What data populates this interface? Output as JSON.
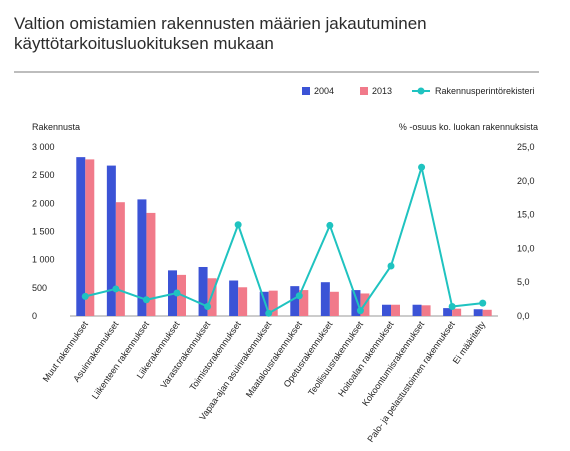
{
  "title_line1": "Valtion omistamien rakennusten määrien jakautuminen",
  "title_line2": "käyttötarkoitusluokituksen mukaan",
  "colors": {
    "bar2004": "#3b53d6",
    "bar2013": "#f17a8a",
    "line": "#1fc3c0"
  },
  "chart_data": {
    "type": "bar",
    "categories": [
      "Muut rakennukset",
      "Asuinrakennukset",
      "Liikenteen rakennukset",
      "Liikerakennukset",
      "Varastorakennukset",
      "Toimistorakennukset",
      "Vapaa-ajan asuinrakennukset",
      "Maatalousrakennukset",
      "Opetusrakennukset",
      "Teollisuusrakennukset",
      "Hoitoalan rakennukset",
      "Kokoontumisrakennukset",
      "Palo- ja pelastustoimen rakennukset",
      "Ei määritelty"
    ],
    "series": [
      {
        "name": "2004",
        "axis": "left",
        "kind": "bar",
        "values": [
          2820,
          2670,
          2070,
          810,
          870,
          630,
          430,
          530,
          600,
          460,
          200,
          200,
          140,
          120
        ]
      },
      {
        "name": "2013",
        "axis": "left",
        "kind": "bar",
        "values": [
          2780,
          2020,
          1830,
          730,
          670,
          510,
          450,
          460,
          430,
          400,
          200,
          190,
          130,
          110
        ]
      },
      {
        "name": "Rakennusperintörekisteri",
        "axis": "right",
        "kind": "line",
        "values": [
          2.9,
          4.0,
          2.4,
          3.4,
          1.4,
          13.5,
          0.4,
          3.0,
          13.4,
          0.8,
          7.4,
          22.0,
          1.4,
          1.9
        ]
      }
    ],
    "ylabel_left": "Rakennusta",
    "ylabel_right": "% -osuus  ko. luokan rakennuksista",
    "ylim_left": [
      0,
      3000
    ],
    "ylim_right": [
      0,
      25
    ],
    "yticks_left": [
      "0",
      "500",
      "1 000",
      "1 500",
      "2 000",
      "2 500",
      "3 000"
    ],
    "yticks_right": [
      "0,0",
      "5,0",
      "10,0",
      "15,0",
      "20,0",
      "25,0"
    ],
    "legend_position": "top-right",
    "grid": false
  }
}
